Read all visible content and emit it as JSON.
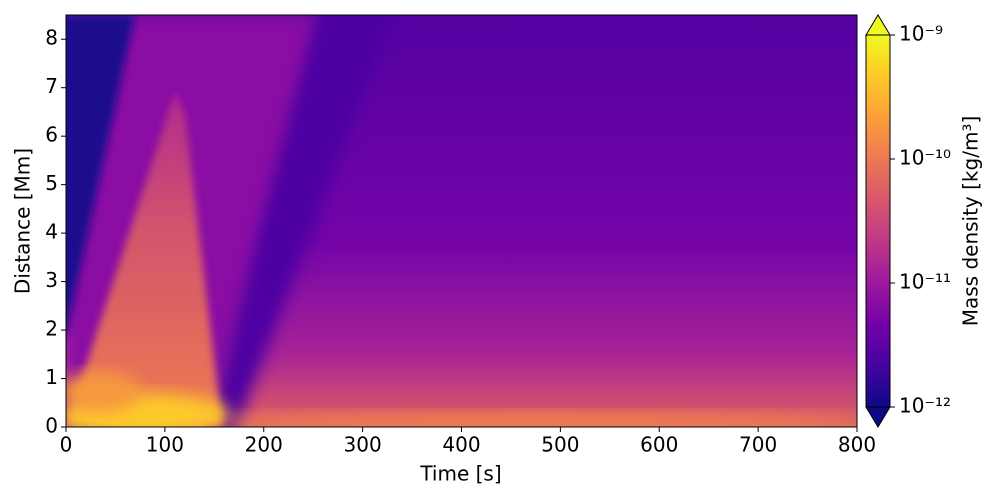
{
  "chart_data": {
    "type": "heatmap",
    "xlabel": "Time [s]",
    "ylabel": "Distance [Mm]",
    "xlim": [
      0,
      800
    ],
    "xticks": [
      0,
      100,
      200,
      300,
      400,
      500,
      600,
      700,
      800
    ],
    "ylim": [
      0,
      8.5
    ],
    "yticks": [
      0,
      1,
      2,
      3,
      4,
      5,
      6,
      7,
      8
    ],
    "colormap": "plasma",
    "colorbar": {
      "label": "Mass density [kg/m³]",
      "scale": "log",
      "lim": [
        1e-12,
        1e-09
      ],
      "extend": "both",
      "ticks": [
        {
          "value": 1e-12,
          "label": "10⁻¹²"
        },
        {
          "value": 1e-11,
          "label": "10⁻¹¹"
        },
        {
          "value": 1e-10,
          "label": "10⁻¹⁰"
        },
        {
          "value": 1e-09,
          "label": "10⁻⁹"
        }
      ]
    }
  }
}
